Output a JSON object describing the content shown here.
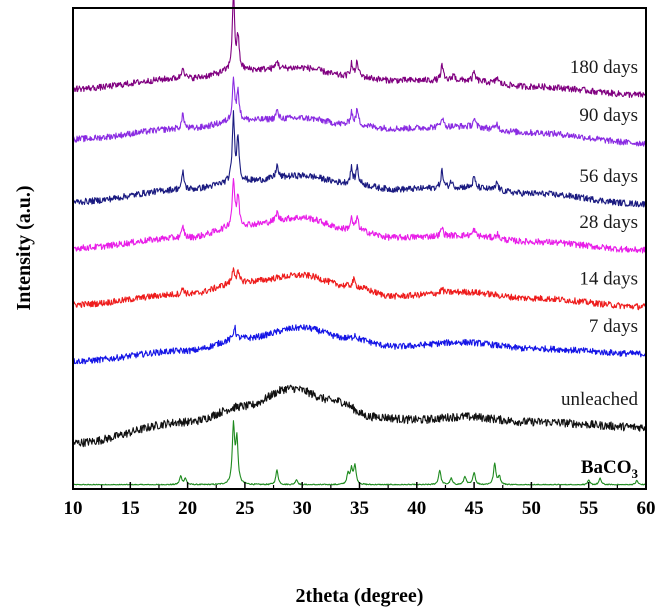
{
  "chart_data": {
    "type": "line",
    "xlabel": "2theta (degree)",
    "ylabel": "Intensity (a.u.)",
    "xlim": [
      10,
      60
    ],
    "xticks": [
      "10",
      "15",
      "20",
      "25",
      "30",
      "35",
      "40",
      "45",
      "50",
      "55",
      "60"
    ],
    "y_ticks_shown": false,
    "grid": false,
    "legend": "inline labels on right",
    "series": [
      {
        "name": "BaCO",
        "subscript": "3",
        "color": "#1e8a1e",
        "baseline": [
          [
            10,
            0
          ],
          [
            60,
            0
          ]
        ],
        "peaks": [
          [
            19.4,
            8
          ],
          [
            19.8,
            6
          ],
          [
            24.0,
            55
          ],
          [
            24.3,
            42
          ],
          [
            27.8,
            14
          ],
          [
            29.5,
            5
          ],
          [
            34.0,
            10
          ],
          [
            34.3,
            14
          ],
          [
            34.6,
            18
          ],
          [
            42.0,
            14
          ],
          [
            43.0,
            6
          ],
          [
            44.2,
            8
          ],
          [
            45.0,
            12
          ],
          [
            46.8,
            20
          ],
          [
            47.2,
            8
          ],
          [
            55.0,
            4
          ],
          [
            56.0,
            6
          ],
          [
            59.2,
            4
          ]
        ],
        "noise": 0.6
      },
      {
        "name": "unleached",
        "color": "#111111",
        "baseline": [
          [
            10,
            40
          ],
          [
            20,
            60
          ],
          [
            25,
            75
          ],
          [
            29,
            92
          ],
          [
            33,
            80
          ],
          [
            36,
            65
          ],
          [
            40,
            62
          ],
          [
            44,
            65
          ],
          [
            50,
            60
          ],
          [
            60,
            55
          ]
        ],
        "peaks": [],
        "noise": 4
      },
      {
        "name": "7 days",
        "color": "#1515e6",
        "baseline": [
          [
            10,
            118
          ],
          [
            20,
            128
          ],
          [
            25,
            140
          ],
          [
            30,
            150
          ],
          [
            34,
            140
          ],
          [
            38,
            132
          ],
          [
            44,
            136
          ],
          [
            50,
            130
          ],
          [
            60,
            125
          ]
        ],
        "peaks": [
          [
            24.1,
            12
          ],
          [
            34.6,
            4
          ]
        ],
        "noise": 3
      },
      {
        "name": "14 days",
        "color": "#ee1c1c",
        "baseline": [
          [
            10,
            172
          ],
          [
            20,
            182
          ],
          [
            25,
            194
          ],
          [
            30,
            200
          ],
          [
            34,
            190
          ],
          [
            38,
            180
          ],
          [
            44,
            184
          ],
          [
            50,
            178
          ],
          [
            60,
            170
          ]
        ],
        "peaks": [
          [
            19.6,
            6
          ],
          [
            24.0,
            14
          ],
          [
            24.4,
            8
          ],
          [
            34.5,
            6
          ],
          [
            42.2,
            4
          ]
        ],
        "noise": 3
      },
      {
        "name": "28 days",
        "color": "#e81ee8",
        "baseline": [
          [
            10,
            226
          ],
          [
            20,
            236
          ],
          [
            25,
            248
          ],
          [
            30,
            255
          ],
          [
            34,
            244
          ],
          [
            38,
            236
          ],
          [
            44,
            238
          ],
          [
            50,
            232
          ],
          [
            60,
            224
          ]
        ],
        "peaks": [
          [
            19.6,
            10
          ],
          [
            24.0,
            44
          ],
          [
            24.4,
            28
          ],
          [
            27.8,
            8
          ],
          [
            34.3,
            10
          ],
          [
            34.8,
            12
          ],
          [
            42.2,
            8
          ],
          [
            45.0,
            6
          ],
          [
            47.0,
            5
          ]
        ],
        "noise": 3
      },
      {
        "name": "56 days",
        "color": "#1a1a80",
        "baseline": [
          [
            10,
            270
          ],
          [
            20,
            282
          ],
          [
            25,
            290
          ],
          [
            30,
            295
          ],
          [
            34,
            288
          ],
          [
            38,
            282
          ],
          [
            44,
            284
          ],
          [
            50,
            278
          ],
          [
            60,
            268
          ]
        ],
        "peaks": [
          [
            19.6,
            16
          ],
          [
            24.0,
            62
          ],
          [
            24.4,
            40
          ],
          [
            27.8,
            12
          ],
          [
            34.3,
            14
          ],
          [
            34.8,
            16
          ],
          [
            42.2,
            16
          ],
          [
            43.0,
            6
          ],
          [
            45.0,
            10
          ],
          [
            47.0,
            8
          ]
        ],
        "noise": 3
      },
      {
        "name": "90 days",
        "color": "#8a2be2",
        "baseline": [
          [
            10,
            330
          ],
          [
            20,
            340
          ],
          [
            25,
            348
          ],
          [
            30,
            350
          ],
          [
            34,
            344
          ],
          [
            38,
            340
          ],
          [
            44,
            342
          ],
          [
            50,
            336
          ],
          [
            60,
            326
          ]
        ],
        "peaks": [
          [
            19.6,
            14
          ],
          [
            24.0,
            40
          ],
          [
            24.4,
            28
          ],
          [
            27.8,
            8
          ],
          [
            34.3,
            12
          ],
          [
            34.8,
            14
          ],
          [
            42.2,
            10
          ],
          [
            45.0,
            8
          ],
          [
            47.0,
            6
          ]
        ],
        "noise": 3
      },
      {
        "name": "180 days",
        "color": "#800080",
        "baseline": [
          [
            10,
            378
          ],
          [
            20,
            388
          ],
          [
            25,
            396
          ],
          [
            30,
            398
          ],
          [
            34,
            390
          ],
          [
            38,
            386
          ],
          [
            44,
            386
          ],
          [
            50,
            380
          ],
          [
            60,
            372
          ]
        ],
        "peaks": [
          [
            19.6,
            12
          ],
          [
            24.0,
            72
          ],
          [
            24.4,
            30
          ],
          [
            27.8,
            8
          ],
          [
            34.3,
            12
          ],
          [
            34.8,
            14
          ],
          [
            42.2,
            14
          ],
          [
            43.2,
            6
          ],
          [
            45.0,
            8
          ],
          [
            47.0,
            6
          ]
        ],
        "noise": 3
      }
    ]
  }
}
